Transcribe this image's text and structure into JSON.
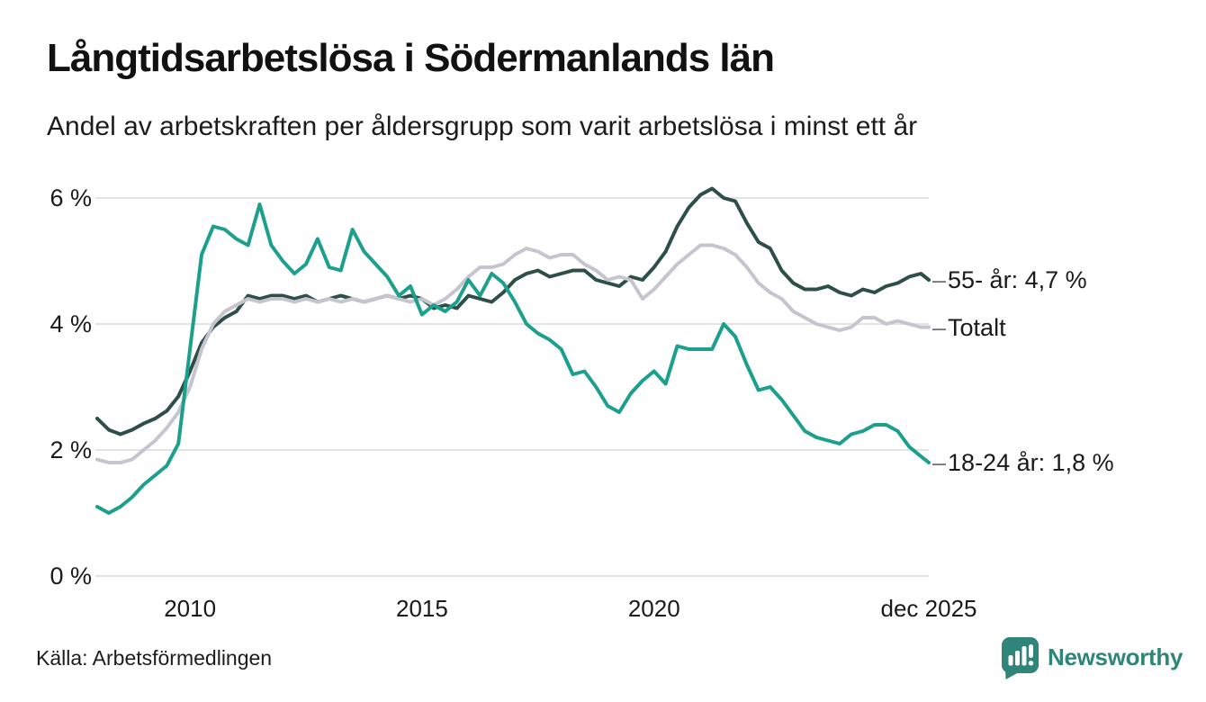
{
  "header": {
    "title": "Långtidsarbetslösa i Södermanlands län",
    "subtitle": "Andel av arbetskraften per åldersgrupp som varit arbetslösa i minst ett år"
  },
  "footer": {
    "source": "Källa: Arbetsförmedlingen",
    "brand": "Newsworthy",
    "logo_icon": "bar-chart-speech-bubble-icon"
  },
  "colors": {
    "background": "#ffffff",
    "gridline": "#e4e4e4",
    "title_text": "#111111",
    "body_text": "#1a1a1a",
    "label_tick": "#737373",
    "brand_teal": "#2e8578",
    "series_55_plus": "#2d4f48",
    "series_total": "#c6c4cf",
    "series_18_24": "#1aa08c"
  },
  "chart_data": {
    "type": "line",
    "title": "Långtidsarbetslösa i Södermanlands län",
    "subtitle": "Andel av arbetskraften per åldersgrupp som varit arbetslösa i minst ett år",
    "unit": "%",
    "grid": "horizontal-only",
    "legend_position": "right-end-labels",
    "tick_glyph": "–",
    "x_axis": {
      "range": [
        2008,
        2025.92
      ],
      "ticks": [
        {
          "label": "2010",
          "value": 2010
        },
        {
          "label": "2015",
          "value": 2015
        },
        {
          "label": "2020",
          "value": 2020
        },
        {
          "label": "dec 2025",
          "value": 2025.92
        }
      ]
    },
    "y_axis": {
      "range": [
        0,
        6
      ],
      "unit": "%",
      "ticks": [
        {
          "label": "6 %",
          "value": 6
        },
        {
          "label": "4 %",
          "value": 4
        },
        {
          "label": "2 %",
          "value": 2
        },
        {
          "label": "0 %",
          "value": 0
        }
      ]
    },
    "x": [
      2008,
      2008.25,
      2008.5,
      2008.75,
      2009,
      2009.25,
      2009.5,
      2009.75,
      2010,
      2010.25,
      2010.5,
      2010.75,
      2011,
      2011.25,
      2011.5,
      2011.75,
      2012,
      2012.25,
      2012.5,
      2012.75,
      2013,
      2013.25,
      2013.5,
      2013.75,
      2014,
      2014.25,
      2014.5,
      2014.75,
      2015,
      2015.25,
      2015.5,
      2015.75,
      2016,
      2016.25,
      2016.5,
      2016.75,
      2017,
      2017.25,
      2017.5,
      2017.75,
      2018,
      2018.25,
      2018.5,
      2018.75,
      2019,
      2019.25,
      2019.5,
      2019.75,
      2020,
      2020.25,
      2020.5,
      2020.75,
      2021,
      2021.25,
      2021.5,
      2021.75,
      2022,
      2022.25,
      2022.5,
      2022.75,
      2023,
      2023.25,
      2023.5,
      2023.75,
      2024,
      2024.25,
      2024.5,
      2024.75,
      2025,
      2025.25,
      2025.5,
      2025.75,
      2025.92
    ],
    "series": [
      {
        "id": "55-plus",
        "name": "55- år",
        "end_label": "55- år: 4,7 %",
        "end_value_label": "4,7 %",
        "color": "#2d4f48",
        "values": [
          2.5,
          2.32,
          2.25,
          2.32,
          2.42,
          2.5,
          2.62,
          2.85,
          3.25,
          3.7,
          3.95,
          4.1,
          4.2,
          4.45,
          4.4,
          4.45,
          4.45,
          4.4,
          4.45,
          4.35,
          4.4,
          4.45,
          4.4,
          4.35,
          4.4,
          4.45,
          4.4,
          4.45,
          4.4,
          4.25,
          4.3,
          4.25,
          4.45,
          4.4,
          4.35,
          4.5,
          4.7,
          4.8,
          4.85,
          4.75,
          4.8,
          4.85,
          4.85,
          4.7,
          4.65,
          4.6,
          4.75,
          4.7,
          4.9,
          5.15,
          5.55,
          5.85,
          6.05,
          6.15,
          6.0,
          5.95,
          5.6,
          5.3,
          5.2,
          4.85,
          4.65,
          4.55,
          4.55,
          4.6,
          4.5,
          4.45,
          4.55,
          4.5,
          4.6,
          4.65,
          4.75,
          4.8,
          4.7
        ]
      },
      {
        "id": "total",
        "name": "Totalt",
        "end_label": "Totalt",
        "end_value_label": "",
        "color": "#c6c4cf",
        "values": [
          1.85,
          1.8,
          1.8,
          1.85,
          2.0,
          2.15,
          2.35,
          2.6,
          3.0,
          3.6,
          4.0,
          4.2,
          4.3,
          4.4,
          4.35,
          4.4,
          4.4,
          4.35,
          4.4,
          4.35,
          4.4,
          4.35,
          4.4,
          4.35,
          4.4,
          4.45,
          4.4,
          4.35,
          4.4,
          4.3,
          4.4,
          4.55,
          4.75,
          4.9,
          4.9,
          4.95,
          5.1,
          5.2,
          5.15,
          5.05,
          5.1,
          5.1,
          4.95,
          4.85,
          4.7,
          4.75,
          4.7,
          4.4,
          4.55,
          4.75,
          4.95,
          5.1,
          5.25,
          5.25,
          5.2,
          5.1,
          4.9,
          4.65,
          4.5,
          4.4,
          4.2,
          4.1,
          4.0,
          3.95,
          3.9,
          3.95,
          4.1,
          4.1,
          4.0,
          4.05,
          4.0,
          3.95,
          3.95
        ]
      },
      {
        "id": "18-24",
        "name": "18-24 år",
        "end_label": "18-24 år: 1,8 %",
        "end_value_label": "1,8 %",
        "color": "#1aa08c",
        "values": [
          1.1,
          1.0,
          1.1,
          1.25,
          1.45,
          1.6,
          1.75,
          2.1,
          3.6,
          5.1,
          5.55,
          5.5,
          5.35,
          5.25,
          5.9,
          5.25,
          5.0,
          4.8,
          4.95,
          5.35,
          4.9,
          4.85,
          5.5,
          5.15,
          4.95,
          4.75,
          4.45,
          4.6,
          4.15,
          4.3,
          4.2,
          4.35,
          4.7,
          4.45,
          4.8,
          4.65,
          4.35,
          4.0,
          3.85,
          3.75,
          3.6,
          3.2,
          3.25,
          3.0,
          2.7,
          2.6,
          2.9,
          3.1,
          3.25,
          3.05,
          3.65,
          3.6,
          3.6,
          3.6,
          4.0,
          3.8,
          3.35,
          2.95,
          3.0,
          2.8,
          2.55,
          2.3,
          2.2,
          2.15,
          2.1,
          2.25,
          2.3,
          2.4,
          2.4,
          2.3,
          2.05,
          1.9,
          1.8
        ]
      }
    ]
  }
}
